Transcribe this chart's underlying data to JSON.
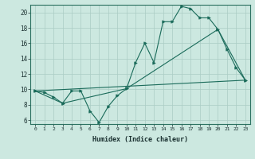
{
  "xlabel": "Humidex (Indice chaleur)",
  "xlim": [
    -0.5,
    23.5
  ],
  "ylim": [
    5.5,
    21.0
  ],
  "yticks": [
    6,
    8,
    10,
    12,
    14,
    16,
    18,
    20
  ],
  "xticks": [
    0,
    1,
    2,
    3,
    4,
    5,
    6,
    7,
    8,
    9,
    10,
    11,
    12,
    13,
    14,
    15,
    16,
    17,
    18,
    19,
    20,
    21,
    22,
    23
  ],
  "bg_color": "#cce8e0",
  "grid_color": "#aaccC4",
  "line_color": "#1a6b5a",
  "line_series": [
    {
      "x": [
        0,
        1,
        2,
        3,
        4,
        5,
        6,
        7,
        8,
        9,
        10,
        11,
        12,
        13,
        14,
        15,
        16,
        17,
        18,
        19,
        20,
        21,
        22,
        23
      ],
      "y": [
        9.8,
        9.6,
        9.0,
        8.2,
        9.8,
        9.8,
        7.2,
        5.7,
        7.8,
        9.2,
        10.1,
        13.5,
        16.0,
        13.5,
        18.8,
        18.8,
        20.8,
        20.5,
        19.3,
        19.3,
        17.8,
        15.2,
        12.8,
        11.2
      ],
      "marker": true
    },
    {
      "x": [
        0,
        3,
        10,
        20,
        23
      ],
      "y": [
        9.8,
        8.2,
        10.1,
        17.8,
        11.2
      ],
      "marker": true
    },
    {
      "x": [
        0,
        23
      ],
      "y": [
        9.8,
        11.2
      ],
      "marker": false
    }
  ]
}
